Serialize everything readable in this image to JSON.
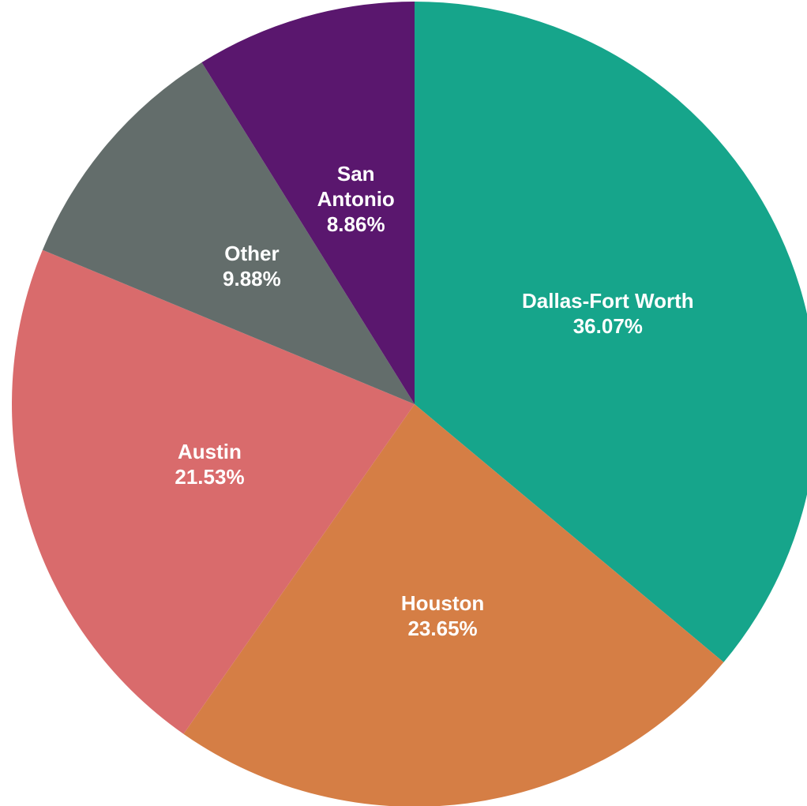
{
  "chart_data": {
    "type": "pie",
    "categories": [
      "Dallas-Fort Worth",
      "Houston",
      "Austin",
      "Other",
      "San Antonio"
    ],
    "values": [
      36.07,
      23.65,
      21.53,
      9.88,
      8.86
    ],
    "value_labels": [
      "36.07%",
      "23.65%",
      "21.53%",
      "9.88%",
      "8.86%"
    ],
    "colors": [
      "#16a58b",
      "#d57e45",
      "#d96b6c",
      "#636d6b",
      "#5a176e"
    ]
  }
}
